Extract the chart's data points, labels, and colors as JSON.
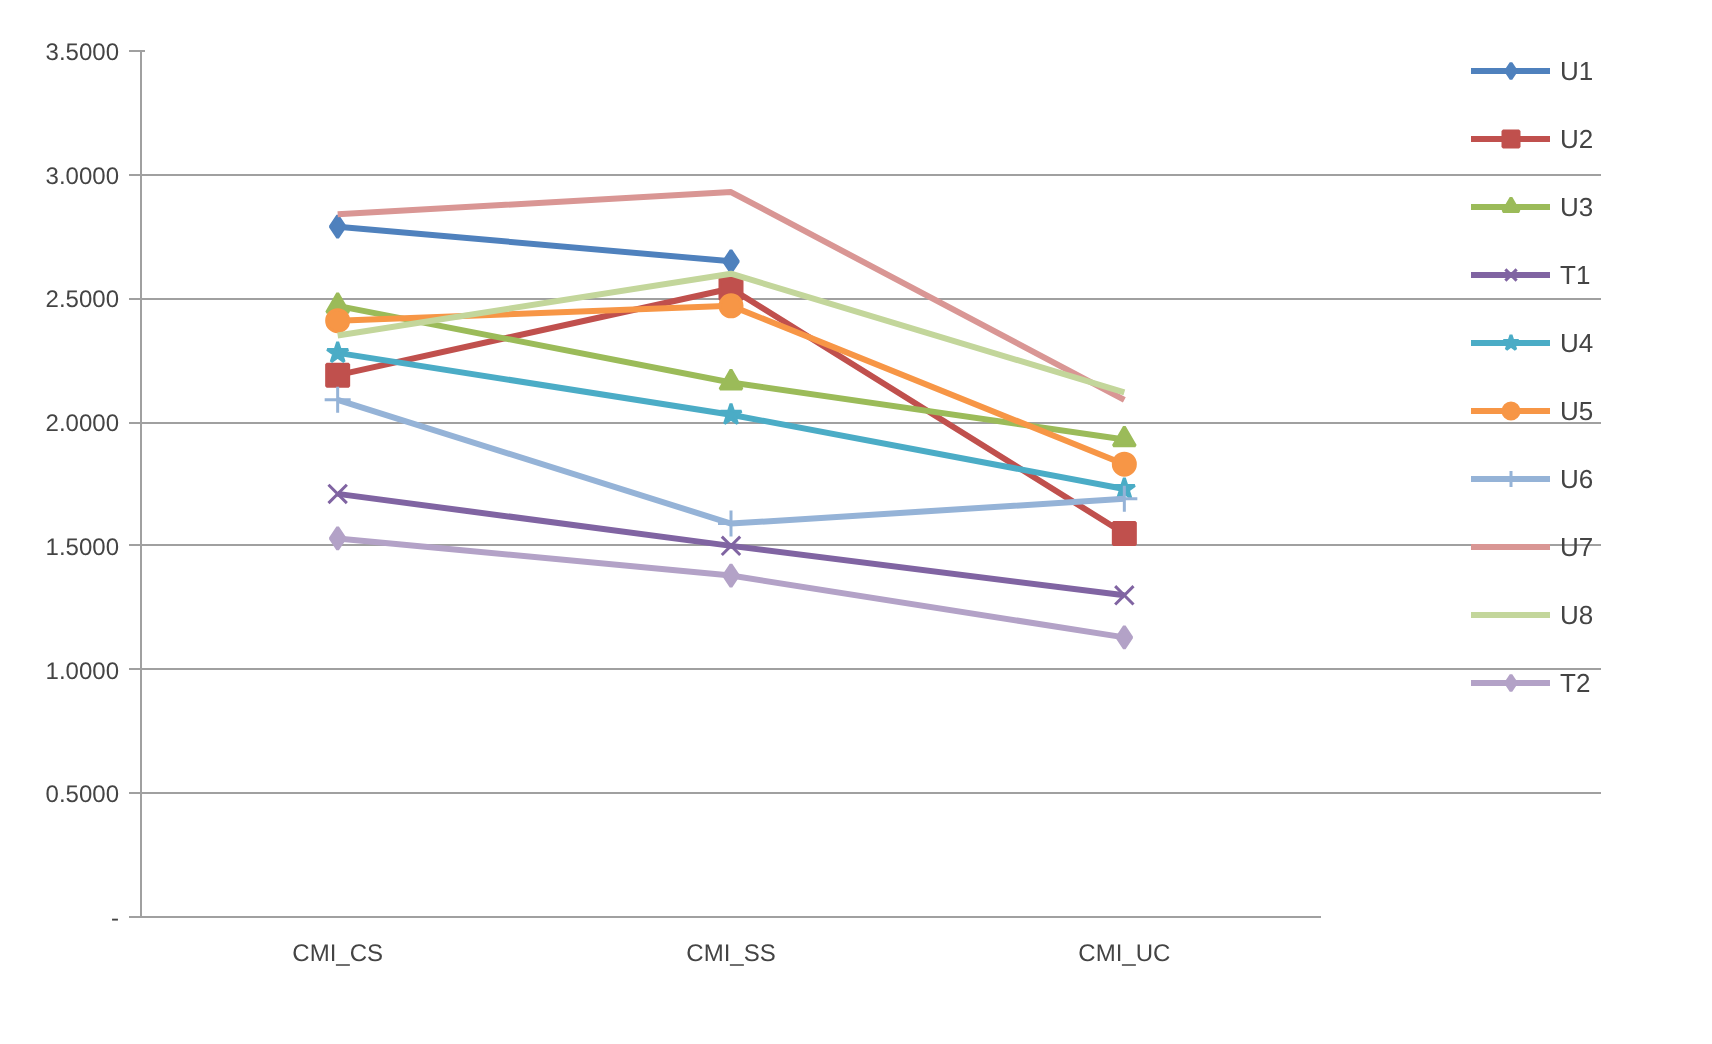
{
  "chart_data": {
    "type": "line",
    "categories": [
      "CMI_CS",
      "CMI_SS",
      "CMI_UC"
    ],
    "series": [
      {
        "name": "U1",
        "color": "#4f81bd",
        "marker": "diamond",
        "values": [
          2.79,
          2.65,
          null
        ]
      },
      {
        "name": "U2",
        "color": "#c0504d",
        "marker": "square",
        "values": [
          2.19,
          2.54,
          1.55
        ]
      },
      {
        "name": "U3",
        "color": "#9bbb59",
        "marker": "triangle",
        "values": [
          2.47,
          2.16,
          1.93
        ]
      },
      {
        "name": "T1",
        "color": "#8064a2",
        "marker": "cross",
        "values": [
          1.71,
          1.5,
          1.3
        ]
      },
      {
        "name": "U4",
        "color": "#4bacc6",
        "marker": "star",
        "values": [
          2.28,
          2.03,
          1.73
        ]
      },
      {
        "name": "U5",
        "color": "#f79646",
        "marker": "circle",
        "values": [
          2.41,
          2.47,
          1.83
        ]
      },
      {
        "name": "U6",
        "color": "#95b3d7",
        "marker": "plus",
        "values": [
          2.09,
          1.59,
          1.69
        ]
      },
      {
        "name": "U7",
        "color": "#d99694",
        "marker": "none",
        "values": [
          2.84,
          2.93,
          2.09
        ]
      },
      {
        "name": "U8",
        "color": "#c3d69b",
        "marker": "none",
        "values": [
          2.35,
          2.6,
          2.12
        ]
      },
      {
        "name": "T2",
        "color": "#b3a2c7",
        "marker": "diamond",
        "values": [
          1.53,
          1.38,
          1.13
        ]
      }
    ],
    "ylim": [
      0,
      3.5
    ],
    "yticks": [
      {
        "value": 0,
        "label": "-"
      },
      {
        "value": 0.5,
        "label": "0.5000"
      },
      {
        "value": 1,
        "label": "1.0000"
      },
      {
        "value": 1.5,
        "label": "1.5000"
      },
      {
        "value": 2,
        "label": "2.0000"
      },
      {
        "value": 2.5,
        "label": "2.5000"
      },
      {
        "value": 3,
        "label": "3.0000"
      },
      {
        "value": 3.5,
        "label": "3.5000"
      }
    ],
    "grid": "y",
    "legend": "right",
    "line_style": "solid"
  }
}
